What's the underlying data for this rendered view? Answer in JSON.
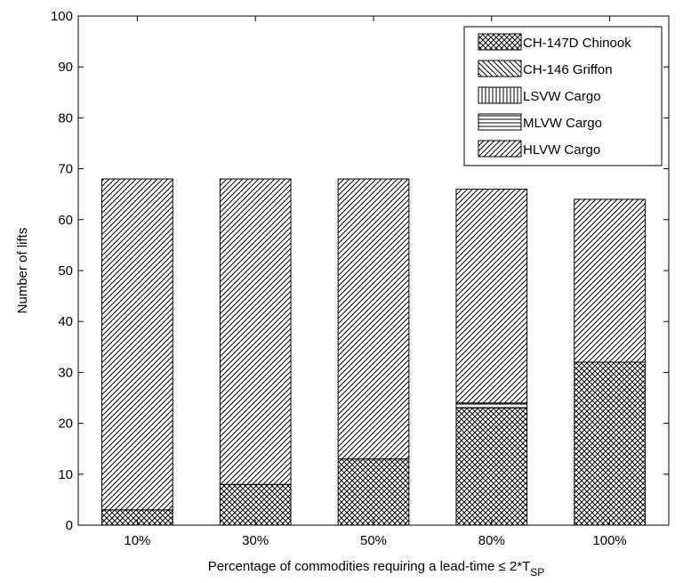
{
  "chart_data": {
    "type": "bar",
    "stacked": true,
    "categories": [
      "10%",
      "30%",
      "50%",
      "80%",
      "100%"
    ],
    "series": [
      {
        "name": "CH-147D Chinook",
        "values": [
          3,
          8,
          13,
          23,
          32
        ],
        "pattern": "crosshatch"
      },
      {
        "name": "CH-146 Griffon",
        "values": [
          0,
          0,
          0,
          0,
          0
        ],
        "pattern": "backslash"
      },
      {
        "name": "LSVW Cargo",
        "values": [
          0,
          0,
          0,
          0,
          0
        ],
        "pattern": "vertical"
      },
      {
        "name": "MLVW Cargo",
        "values": [
          0,
          0,
          0,
          1,
          0
        ],
        "pattern": "horizontal"
      },
      {
        "name": "HLVW Cargo",
        "values": [
          65,
          60,
          55,
          42,
          32
        ],
        "pattern": "slash"
      }
    ],
    "xlabel": "Percentage of commodities requiring a lead-time ≤ 2*T",
    "xlabel_subscript": "SP",
    "ylabel": "Number of lifts",
    "ylim": [
      0,
      100
    ],
    "yticks": [
      "0",
      "10",
      "20",
      "30",
      "40",
      "50",
      "60",
      "70",
      "80",
      "90",
      "100"
    ],
    "legend_position": "top-right",
    "grid": false
  }
}
